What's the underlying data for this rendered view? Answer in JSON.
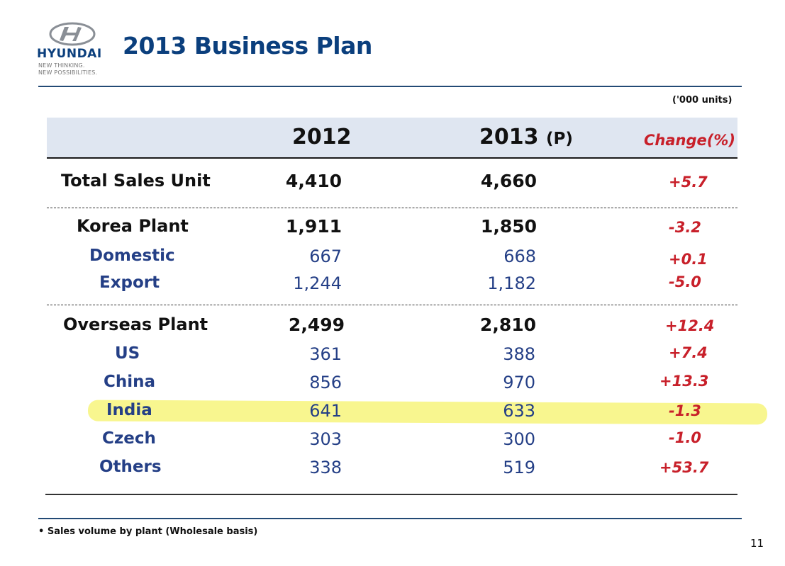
{
  "header": {
    "brand": "HYUNDAI",
    "tagline_1": "NEW THINKING.",
    "tagline_2": "NEW POSSIBILITIES.",
    "title": "2013 Business Plan"
  },
  "table": {
    "units": "('000 units)",
    "columns": {
      "y2012": "2012",
      "y2013": "2013",
      "y2013_suffix": "(P)",
      "change": "Change(%)"
    },
    "rows": [
      {
        "label": "Total Sales Unit",
        "v2012": "4,410",
        "v2013": "4,660",
        "change": "+5.7"
      },
      {
        "label": "Korea Plant",
        "v2012": "1,911",
        "v2013": "1,850",
        "change": "-3.2"
      },
      {
        "label": "Domestic",
        "v2012": "667",
        "v2013": "668",
        "change": "+0.1"
      },
      {
        "label": "Export",
        "v2012": "1,244",
        "v2013": "1,182",
        "change": "-5.0"
      },
      {
        "label": "Overseas Plant",
        "v2012": "2,499",
        "v2013": "2,810",
        "change": "+12.4"
      },
      {
        "label": "US",
        "v2012": "361",
        "v2013": "388",
        "change": "+7.4"
      },
      {
        "label": "China",
        "v2012": "856",
        "v2013": "970",
        "change": "+13.3"
      },
      {
        "label": "India",
        "v2012": "641",
        "v2013": "633",
        "change": "-1.3"
      },
      {
        "label": "Czech",
        "v2012": "303",
        "v2013": "300",
        "change": "-1.0"
      },
      {
        "label": "Others",
        "v2012": "338",
        "v2013": "519",
        "change": "+53.7"
      }
    ]
  },
  "footer": {
    "note": "• Sales volume by plant (Wholesale basis)",
    "page_number": "11"
  },
  "colors": {
    "brand_blue": "#0b3f7d",
    "change_red": "#c8202a",
    "highlight": "#f6f36a"
  }
}
